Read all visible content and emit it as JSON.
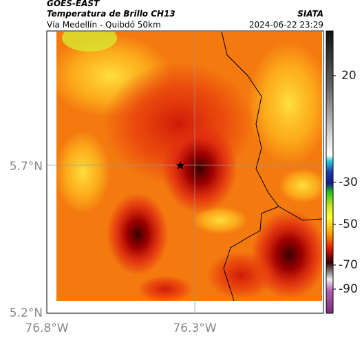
{
  "header": {
    "title": "GOES-EAST",
    "subtitle": "Temperatura de Brillo CH13",
    "location": "Vía Medellín - Quibdó 50km",
    "source": "SIATA",
    "datetime": "2024-06-22 23:29"
  },
  "map": {
    "lat_ticks": [
      "5.7°N",
      "5.2°N"
    ],
    "lon_ticks": [
      "76.8°W",
      "76.3°W"
    ]
  },
  "colorbar": {
    "ticks": [
      "20",
      "-30",
      "-50",
      "-70",
      "-90"
    ]
  }
}
